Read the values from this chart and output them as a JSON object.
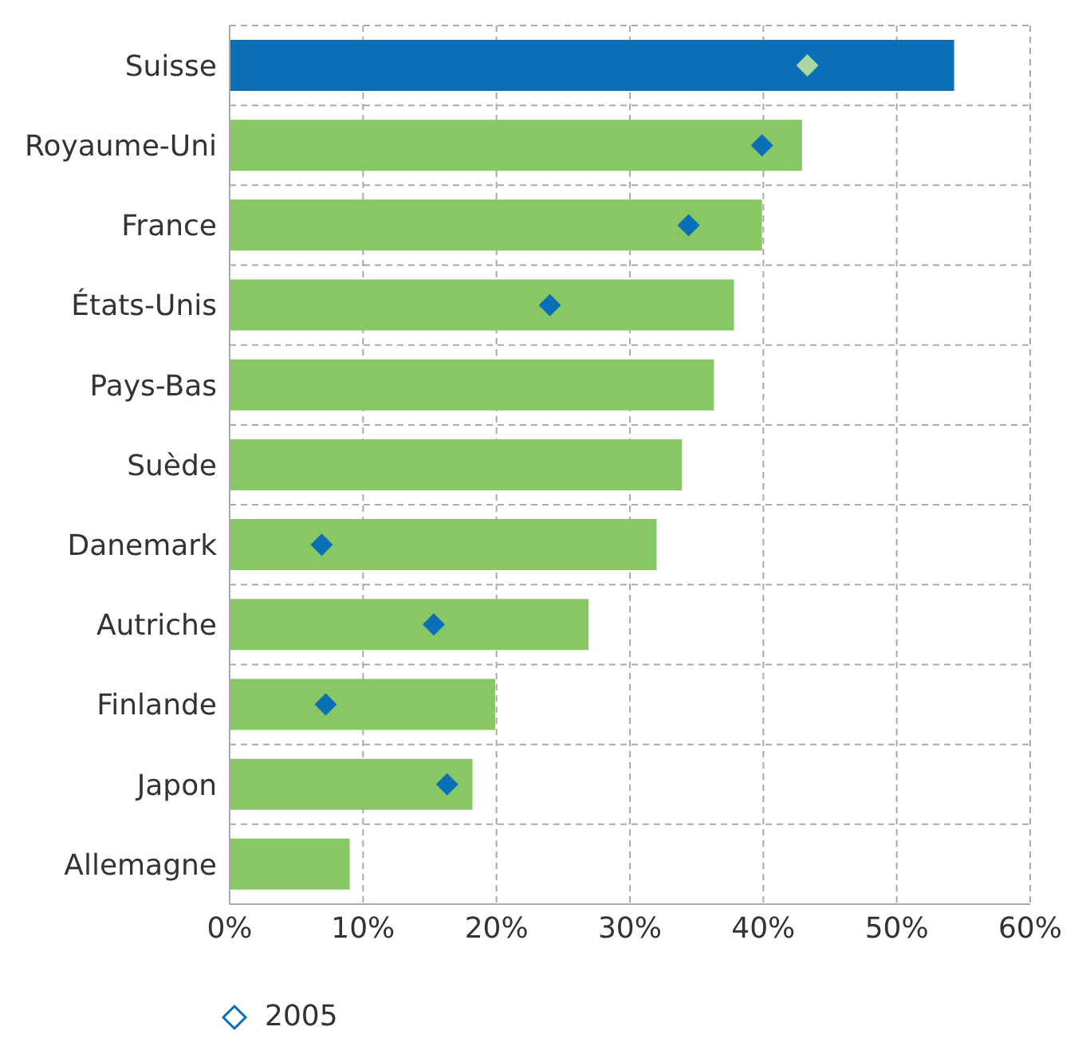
{
  "chart_data": {
    "type": "bar",
    "orientation": "horizontal",
    "categories": [
      "Suisse",
      "Royaume-Uni",
      "France",
      "États-Unis",
      "Pays-Bas",
      "Suède",
      "Danemark",
      "Autriche",
      "Finlande",
      "Japon",
      "Allemagne"
    ],
    "series": [
      {
        "type": "bar",
        "color": "#88c864",
        "colors": [
          "#0a6fb7",
          "#88c864",
          "#88c864",
          "#88c864",
          "#88c864",
          "#88c864",
          "#88c864",
          "#88c864",
          "#88c864",
          "#88c864",
          "#88c864"
        ],
        "values": [
          54.3,
          42.9,
          39.9,
          37.8,
          36.3,
          33.9,
          32.0,
          26.9,
          19.9,
          18.2,
          9.0
        ]
      },
      {
        "type": "scatter",
        "name": "2005",
        "color": "#0a6fb7",
        "colors": [
          "#a8d8a0",
          "#0a6fb7",
          "#0a6fb7",
          "#0a6fb7",
          null,
          null,
          "#0a6fb7",
          "#0a6fb7",
          "#0a6fb7",
          "#0a6fb7",
          null
        ],
        "values": [
          43.3,
          39.9,
          34.4,
          24.0,
          null,
          null,
          6.9,
          15.3,
          7.2,
          16.3,
          null
        ]
      }
    ],
    "xlim": [
      0,
      60
    ],
    "xticks": [
      {
        "value": 0,
        "label": "0%"
      },
      {
        "value": 10,
        "label": "10%"
      },
      {
        "value": 20,
        "label": "20%"
      },
      {
        "value": 30,
        "label": "30%"
      },
      {
        "value": 40,
        "label": "40%"
      },
      {
        "value": 50,
        "label": "50%"
      },
      {
        "value": 60,
        "label": "60%"
      }
    ],
    "grid": true,
    "legend": "bottom left",
    "marker": "diamond"
  }
}
